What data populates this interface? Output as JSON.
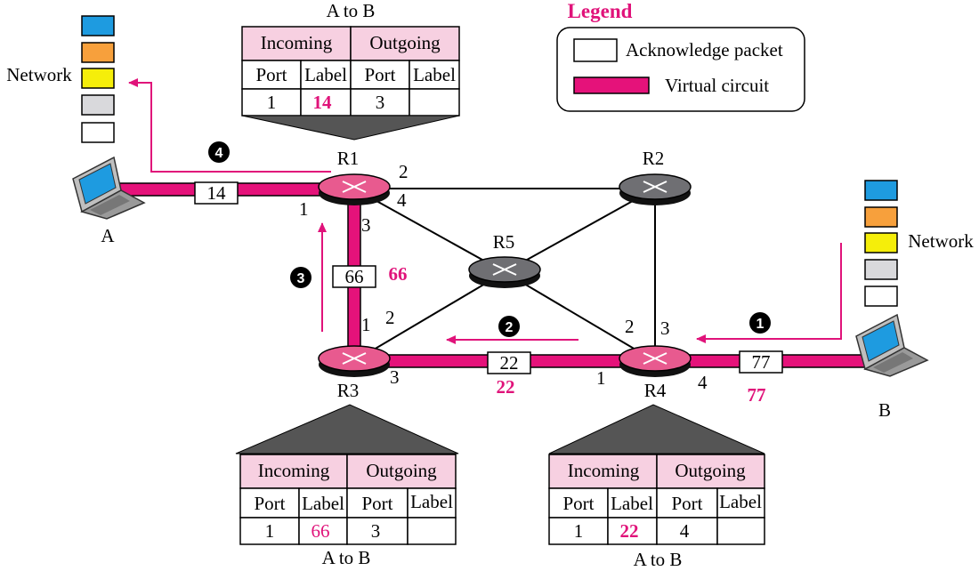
{
  "legend": {
    "title": "Legend",
    "items": [
      {
        "label": "Acknowledge packet",
        "kind": "box"
      },
      {
        "label": "Virtual circuit",
        "kind": "circuit",
        "color": "#e5127a"
      }
    ]
  },
  "colors": {
    "circuit": "#e5127a",
    "arrow": "#e0137a",
    "router_active": "#e85a8f",
    "router_idle": "#6f6f73",
    "table_header": "#f7d0e1"
  },
  "hosts": {
    "A": {
      "label": "A",
      "stack_label": "Network"
    },
    "B": {
      "label": "B",
      "stack_label": "Network"
    },
    "stack_colors": [
      "#1e9be0",
      "#f7a03c",
      "#f5ee0a",
      "#d9d9dc",
      "#ffffff"
    ]
  },
  "routers": [
    {
      "id": "R1",
      "label": "R1",
      "active": true
    },
    {
      "id": "R2",
      "label": "R2",
      "active": false
    },
    {
      "id": "R3",
      "label": "R3",
      "active": true
    },
    {
      "id": "R4",
      "label": "R4",
      "active": true
    },
    {
      "id": "R5",
      "label": "R5",
      "active": false
    }
  ],
  "ports": {
    "r1_1": "1",
    "r1_2": "2",
    "r1_3": "3",
    "r1_4": "4",
    "r3_1": "1",
    "r3_2": "2",
    "r3_3": "3",
    "r4_1": "1",
    "r4_2": "2",
    "r4_3": "3",
    "r4_4": "4"
  },
  "packets": {
    "p14": "14",
    "p66": "66",
    "p66_tag": "66",
    "p22": "22",
    "p22_tag": "22",
    "p77": "77",
    "p77_tag": "77"
  },
  "steps": [
    "1",
    "2",
    "3",
    "4"
  ],
  "tables": {
    "r1": {
      "title": "A to B",
      "incoming": "Incoming",
      "outgoing": "Outgoing",
      "cols": [
        "Port",
        "Label",
        "Port",
        "Label"
      ],
      "row": [
        "1",
        "14",
        "3",
        ""
      ]
    },
    "r3": {
      "title": "A to B",
      "incoming": "Incoming",
      "outgoing": "Outgoing",
      "cols": [
        "Port",
        "Label",
        "Port",
        "Label"
      ],
      "row": [
        "1",
        "66",
        "3",
        ""
      ]
    },
    "r4": {
      "title": "A to B",
      "incoming": "Incoming",
      "outgoing": "Outgoing",
      "cols": [
        "Port",
        "Label",
        "Port",
        "Label"
      ],
      "row": [
        "1",
        "22",
        "4",
        ""
      ]
    }
  }
}
